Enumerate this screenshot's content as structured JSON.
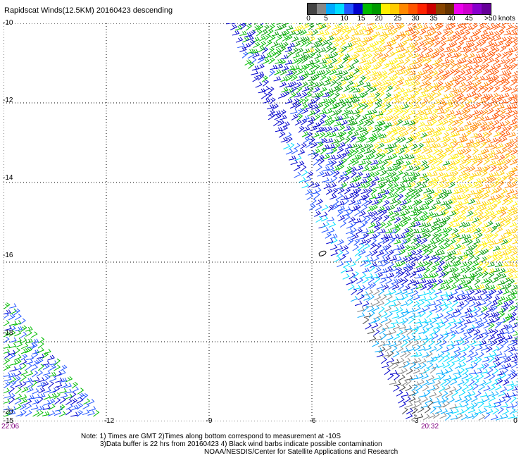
{
  "title": "Rapidscat Winds(12.5KM) 20160423 descending",
  "colorbar": {
    "colors": [
      "#444444",
      "#888888",
      "#00aaff",
      "#00ddff",
      "#2255ff",
      "#0000cc",
      "#00bb00",
      "#009900",
      "#ffee00",
      "#ffcc00",
      "#ff8800",
      "#ff5500",
      "#ff2200",
      "#cc0000",
      "#884400",
      "#663300",
      "#ee00ee",
      "#cc00cc",
      "#8800cc",
      "#660099"
    ],
    "labels": [
      "0",
      "5",
      "10",
      "15",
      "20",
      "25",
      "30",
      "35",
      "40",
      "45",
      ">50 knots"
    ]
  },
  "map": {
    "lat_labels": [
      "-10",
      "-12",
      "-14",
      "-16",
      "-18",
      "-20"
    ],
    "lon_labels": [
      "-15",
      "-12",
      "-9",
      "-6",
      "-3",
      "0"
    ],
    "time_labels": [
      "22:06",
      "20:32"
    ],
    "lat_range": [
      -20,
      -10
    ],
    "lon_range": [
      -15,
      0
    ],
    "grid": "dotted"
  },
  "notes": [
    "Note: 1) Times are GMT 2)Times along bottom correspond to measurement at -10S",
    "3)Data buffer is 22 hrs from 20160423 4) Black wind barbs indicate possible contamination",
    "NOAA/NESDIS/Center for Satellite Applications and Research"
  ]
}
